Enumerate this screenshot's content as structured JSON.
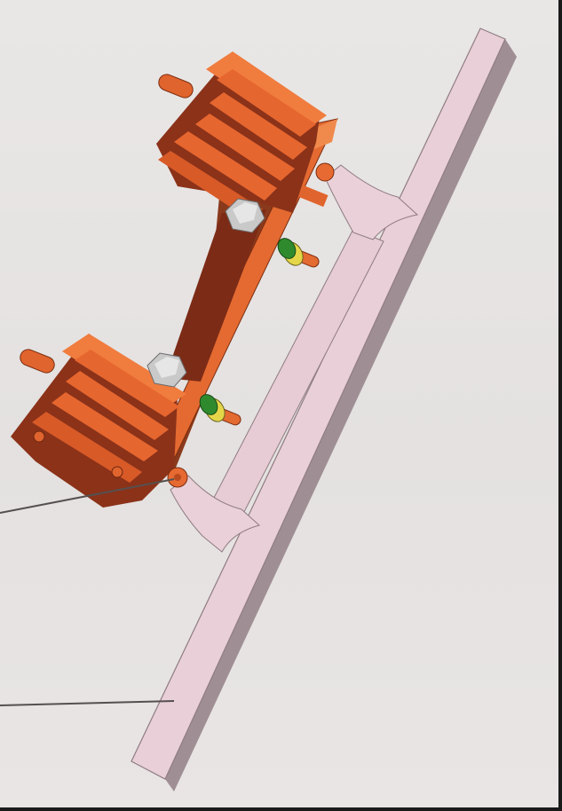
{
  "figure": {
    "callouts": [
      {
        "name": "callout-fastener"
      },
      {
        "name": "callout-support-beam"
      }
    ]
  }
}
